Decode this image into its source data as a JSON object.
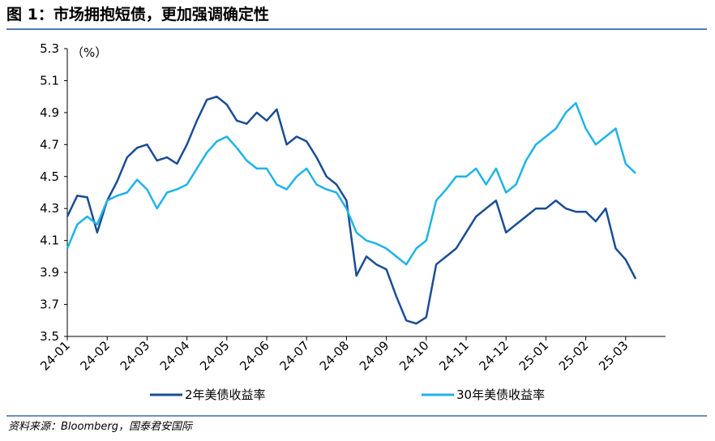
{
  "chart_data": {
    "type": "line",
    "title": "图 1：市场拥抱短债，更加强调确定性",
    "unit_label": "（%）",
    "source": "资料来源：Bloomberg，国泰君安国际",
    "x": [
      0,
      0.25,
      0.5,
      0.75,
      1,
      1.25,
      1.5,
      1.75,
      2,
      2.25,
      2.5,
      2.75,
      3,
      3.25,
      3.5,
      3.75,
      4,
      4.25,
      4.5,
      4.75,
      5,
      5.25,
      5.5,
      5.75,
      6,
      6.25,
      6.5,
      6.75,
      7,
      7.25,
      7.5,
      7.75,
      8,
      8.25,
      8.5,
      8.75,
      9,
      9.25,
      9.5,
      9.75,
      10,
      10.25,
      10.5,
      10.75,
      11,
      11.25,
      11.5,
      11.75,
      12,
      12.25,
      12.5,
      12.75,
      13,
      13.25,
      13.5,
      13.75,
      14,
      14.25
    ],
    "xlim": [
      0,
      15
    ],
    "xticks": [
      {
        "value": 0,
        "label": "24-01"
      },
      {
        "value": 1,
        "label": "24-02"
      },
      {
        "value": 2,
        "label": "24-03"
      },
      {
        "value": 3,
        "label": "24-04"
      },
      {
        "value": 4,
        "label": "24-05"
      },
      {
        "value": 5,
        "label": "24-06"
      },
      {
        "value": 6,
        "label": "24-07"
      },
      {
        "value": 7,
        "label": "24-08"
      },
      {
        "value": 8,
        "label": "24-09"
      },
      {
        "value": 9,
        "label": "24-10"
      },
      {
        "value": 10,
        "label": "24-11"
      },
      {
        "value": 11,
        "label": "24-12"
      },
      {
        "value": 12,
        "label": "25-01"
      },
      {
        "value": 13,
        "label": "25-02"
      },
      {
        "value": 14,
        "label": "25-03"
      }
    ],
    "ylim": [
      3.5,
      5.3
    ],
    "yticks": [
      3.5,
      3.7,
      3.9,
      4.1,
      4.3,
      4.5,
      4.7,
      4.9,
      5.1,
      5.3
    ],
    "series": [
      {
        "name": "2年美债收益率",
        "color": "#1a4d94",
        "values": [
          4.25,
          4.38,
          4.37,
          4.15,
          4.35,
          4.47,
          4.62,
          4.68,
          4.7,
          4.6,
          4.62,
          4.58,
          4.7,
          4.85,
          4.98,
          5.0,
          4.95,
          4.85,
          4.83,
          4.9,
          4.85,
          4.92,
          4.7,
          4.75,
          4.72,
          4.62,
          4.5,
          4.45,
          4.35,
          3.88,
          4.0,
          3.95,
          3.92,
          3.75,
          3.6,
          3.58,
          3.62,
          3.95,
          4.0,
          4.05,
          4.15,
          4.25,
          4.3,
          4.35,
          4.15,
          4.2,
          4.25,
          4.3,
          4.3,
          4.35,
          4.3,
          4.28,
          4.28,
          4.22,
          4.3,
          4.05,
          3.98,
          3.86
        ]
      },
      {
        "name": "30年美债收益率",
        "color": "#1fb3e8",
        "values": [
          4.05,
          4.2,
          4.25,
          4.2,
          4.35,
          4.38,
          4.4,
          4.48,
          4.42,
          4.3,
          4.4,
          4.42,
          4.45,
          4.55,
          4.65,
          4.72,
          4.75,
          4.68,
          4.6,
          4.55,
          4.55,
          4.45,
          4.42,
          4.5,
          4.55,
          4.45,
          4.42,
          4.4,
          4.3,
          4.15,
          4.1,
          4.08,
          4.05,
          4.0,
          3.95,
          4.05,
          4.1,
          4.35,
          4.42,
          4.5,
          4.5,
          4.55,
          4.45,
          4.55,
          4.4,
          4.45,
          4.6,
          4.7,
          4.75,
          4.8,
          4.9,
          4.96,
          4.8,
          4.7,
          4.75,
          4.8,
          4.58,
          4.52
        ]
      }
    ]
  }
}
